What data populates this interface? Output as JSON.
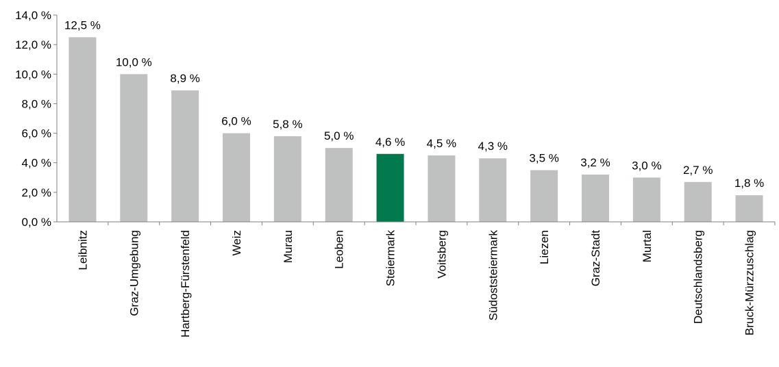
{
  "chart_data": {
    "type": "bar",
    "categories": [
      "Leibnitz",
      "Graz-Umgebung",
      "Hartberg-Fürstenfeld",
      "Weiz",
      "Murau",
      "Leoben",
      "Steiermark",
      "Voitsberg",
      "Südoststeiermark",
      "Liezen",
      "Graz-Stadt",
      "Murtal",
      "Deutschlandsberg",
      "Bruck-Mürzzuschlag"
    ],
    "values": [
      12.5,
      10.0,
      8.9,
      6.0,
      5.8,
      5.0,
      4.6,
      4.5,
      4.3,
      3.5,
      3.2,
      3.0,
      2.7,
      1.8
    ],
    "value_labels": [
      "12,5 %",
      "10,0 %",
      "8,9 %",
      "6,0 %",
      "5,8 %",
      "5,0 %",
      "4,6 %",
      "4,5 %",
      "4,3 %",
      "3,5 %",
      "3,2 %",
      "3,0 %",
      "2,7 %",
      "1,8 %"
    ],
    "highlight_category": "Steiermark",
    "y_ticks": [
      0,
      2,
      4,
      6,
      8,
      10,
      12,
      14
    ],
    "y_tick_labels": [
      "0,0 %",
      "2,0 %",
      "4,0 %",
      "6,0 %",
      "8,0 %",
      "10,0 %",
      "12,0 %",
      "14,0 %"
    ],
    "ylim": [
      0,
      14
    ],
    "title": "",
    "xlabel": "",
    "ylabel": "",
    "grid": false,
    "legend": "none",
    "colors": {
      "bar": "#bfc1c0",
      "highlight": "#007a4c",
      "axis": "#7f7f7f"
    }
  }
}
